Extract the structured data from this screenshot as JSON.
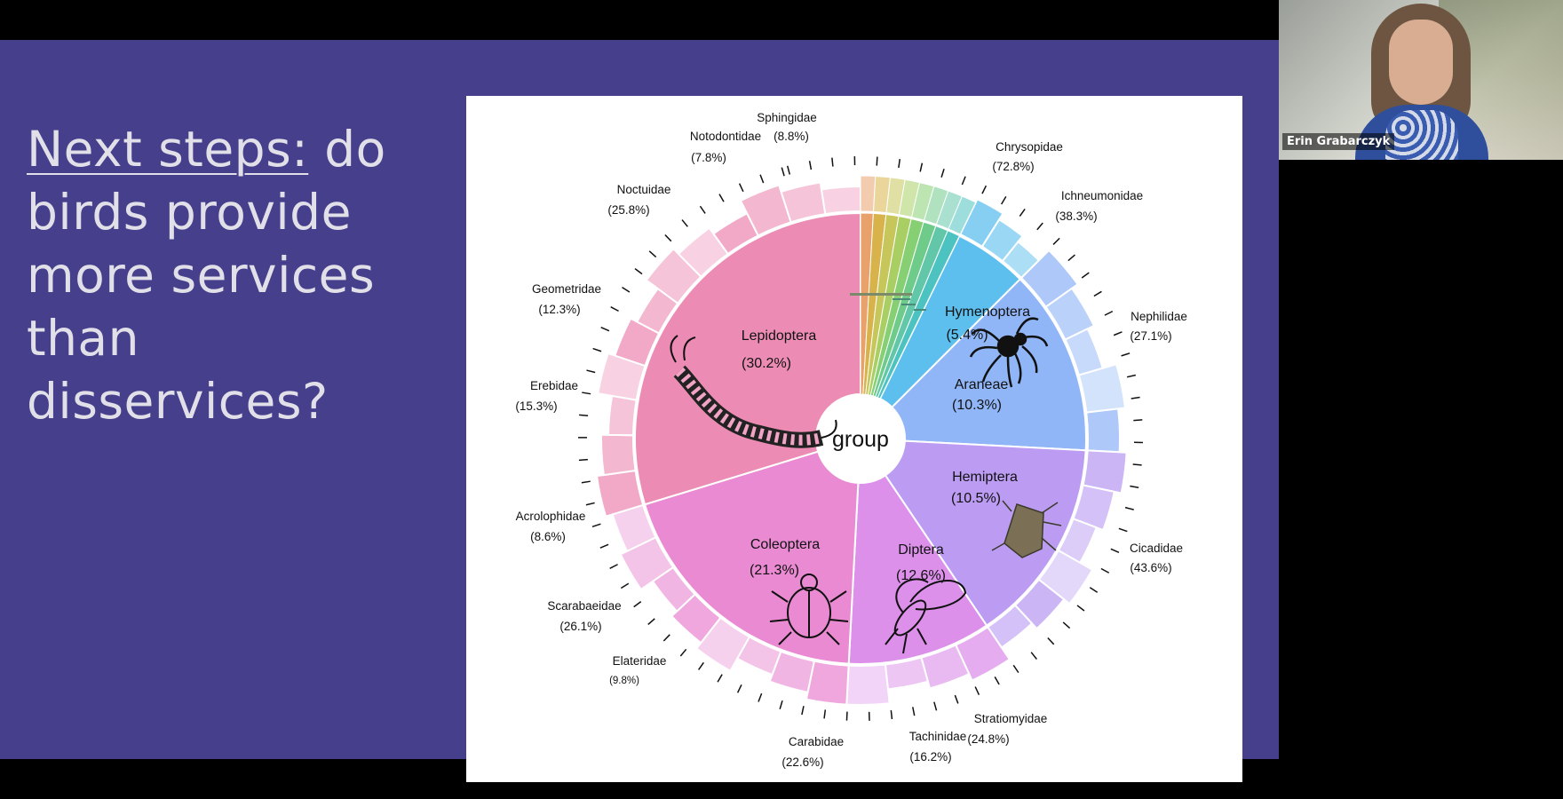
{
  "slide": {
    "title_underlined": "Next steps:",
    "title_rest": " do birds provide more services than disservices?"
  },
  "video": {
    "participant_name": "Erin Grabarczyk"
  },
  "chart_data": {
    "type": "sunburst",
    "center_label": "group",
    "orders": [
      {
        "name": "Lepidoptera",
        "pct": "(30.2%)",
        "color": "#ec8cb4",
        "value": 30.2,
        "icon": "caterpillar-icon"
      },
      {
        "name": "Coleoptera",
        "pct": "(21.3%)",
        "color": "#e98ad2",
        "value": 21.3,
        "icon": "beetle-icon"
      },
      {
        "name": "Diptera",
        "pct": "(12.6%)",
        "color": "#dc90ea",
        "value": 12.6,
        "icon": "fly-icon"
      },
      {
        "name": "Hemiptera",
        "pct": "(10.5%)",
        "color": "#bb9cf2",
        "value": 10.5,
        "icon": "stink-bug-icon"
      },
      {
        "name": "Araneae",
        "pct": "(10.3%)",
        "color": "#91b6f7",
        "value": 10.3,
        "icon": "spider-icon"
      },
      {
        "name": "Hymenoptera",
        "pct": "(5.4%)",
        "color": "#5dbfee",
        "value": 5.4,
        "icon": ""
      }
    ],
    "families": [
      {
        "name": "Sphingidae",
        "pct": "(8.8%)"
      },
      {
        "name": "Notodontidae",
        "pct": "(7.8%)"
      },
      {
        "name": "Noctuidae",
        "pct": "(25.8%)"
      },
      {
        "name": "Geometridae",
        "pct": "(12.3%)"
      },
      {
        "name": "Erebidae",
        "pct": "(15.3%)"
      },
      {
        "name": "Acrolophidae",
        "pct": "(8.6%)"
      },
      {
        "name": "Scarabaeidae",
        "pct": "(26.1%)"
      },
      {
        "name": "Elateridae",
        "pct": "(9.8%)"
      },
      {
        "name": "Carabidae",
        "pct": "(22.6%)"
      },
      {
        "name": "Tachinidae",
        "pct": "(16.2%)"
      },
      {
        "name": "Stratiomyidae",
        "pct": "(24.8%)"
      },
      {
        "name": "Cicadidae",
        "pct": "(43.6%)"
      },
      {
        "name": "Nephilidae",
        "pct": "(27.1%)"
      },
      {
        "name": "Ichneumonidae",
        "pct": "(38.3%)"
      },
      {
        "name": "Chrysopidae",
        "pct": "(72.8%)"
      }
    ]
  }
}
